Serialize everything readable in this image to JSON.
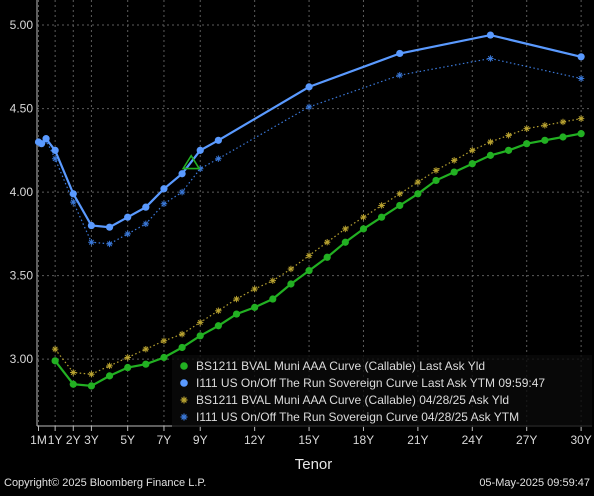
{
  "footer": {
    "copyright": "Copyright© 2025 Bloomberg Finance L.P.",
    "timestamp": "05-May-2025 09:59:47"
  },
  "chart_data": {
    "type": "line",
    "xlabel": "Tenor",
    "ylabel": "",
    "ylim": [
      2.6,
      5.15
    ],
    "xlim": [
      0,
      30.6
    ],
    "grid": true,
    "legend_position": "bottom-right",
    "y_ticks": [
      3.0,
      3.5,
      4.0,
      4.5,
      5.0
    ],
    "y_tick_labels": [
      "3.00",
      "3.50",
      "4.00",
      "4.50",
      "5.00"
    ],
    "x_ticks": [
      0.083,
      1,
      2,
      3,
      5,
      7,
      9,
      12,
      15,
      18,
      21,
      24,
      27,
      30
    ],
    "x_tick_labels": [
      "1M",
      "1Y",
      "2Y",
      "3Y",
      "5Y",
      "7Y",
      "9Y",
      "12Y",
      "15Y",
      "18Y",
      "21Y",
      "24Y",
      "27Y",
      "30Y"
    ],
    "series": [
      {
        "name": "BS1211 BVAL Muni AAA Curve (Callable) Last Ask Yld",
        "style": "solid-dot",
        "color": "#22b022",
        "x": [
          1,
          2,
          3,
          4,
          5,
          6,
          7,
          8,
          9,
          10,
          11,
          12,
          13,
          14,
          15,
          16,
          17,
          18,
          19,
          20,
          21,
          22,
          23,
          24,
          25,
          26,
          27,
          28,
          29,
          30
        ],
        "y": [
          2.99,
          2.85,
          2.84,
          2.9,
          2.95,
          2.97,
          3.01,
          3.07,
          3.14,
          3.2,
          3.27,
          3.31,
          3.36,
          3.45,
          3.53,
          3.61,
          3.7,
          3.78,
          3.85,
          3.92,
          3.99,
          4.07,
          4.12,
          4.17,
          4.22,
          4.25,
          4.29,
          4.31,
          4.33,
          4.35
        ]
      },
      {
        "name": "I111 US On/Off The Run Sovereign Curve Last Ask YTM 09:59:47",
        "style": "solid-dot",
        "color": "#5a9aff",
        "x": [
          0.083,
          0.25,
          0.5,
          1,
          2,
          3,
          4,
          5,
          6,
          7,
          8,
          9,
          10,
          15,
          20,
          25,
          30
        ],
        "y": [
          4.3,
          4.29,
          4.32,
          4.25,
          3.99,
          3.8,
          3.79,
          3.85,
          3.91,
          4.02,
          4.11,
          4.25,
          4.31,
          4.63,
          4.83,
          4.94,
          4.81
        ]
      },
      {
        "name": "BS1211 BVAL Muni AAA Curve (Callable) 04/28/25 Ask Yld",
        "style": "dotted-star",
        "color": "#b8a230",
        "x": [
          1,
          2,
          3,
          4,
          5,
          6,
          7,
          8,
          9,
          10,
          11,
          12,
          13,
          14,
          15,
          16,
          17,
          18,
          19,
          20,
          21,
          22,
          23,
          24,
          25,
          26,
          27,
          28,
          29,
          30
        ],
        "y": [
          3.06,
          2.92,
          2.91,
          2.96,
          3.01,
          3.06,
          3.11,
          3.15,
          3.22,
          3.29,
          3.36,
          3.42,
          3.47,
          3.54,
          3.62,
          3.7,
          3.78,
          3.85,
          3.92,
          3.99,
          4.06,
          4.13,
          4.19,
          4.25,
          4.3,
          4.34,
          4.38,
          4.4,
          4.42,
          4.44
        ]
      },
      {
        "name": "I111 US On/Off The Run Sovereign Curve 04/28/25 Ask YTM",
        "style": "dotted-star",
        "color": "#3a78d8",
        "x": [
          0.083,
          0.25,
          0.5,
          1,
          2,
          3,
          4,
          5,
          6,
          7,
          8,
          9,
          10,
          15,
          20,
          25,
          30
        ],
        "y": [
          4.3,
          4.29,
          4.31,
          4.2,
          3.94,
          3.7,
          3.69,
          3.75,
          3.81,
          3.93,
          4.0,
          4.14,
          4.2,
          4.51,
          4.7,
          4.8,
          4.68
        ]
      }
    ],
    "annotations": [
      {
        "type": "triangle-marker",
        "color": "#22b022",
        "x": 8.5,
        "y": 4.17
      }
    ]
  }
}
